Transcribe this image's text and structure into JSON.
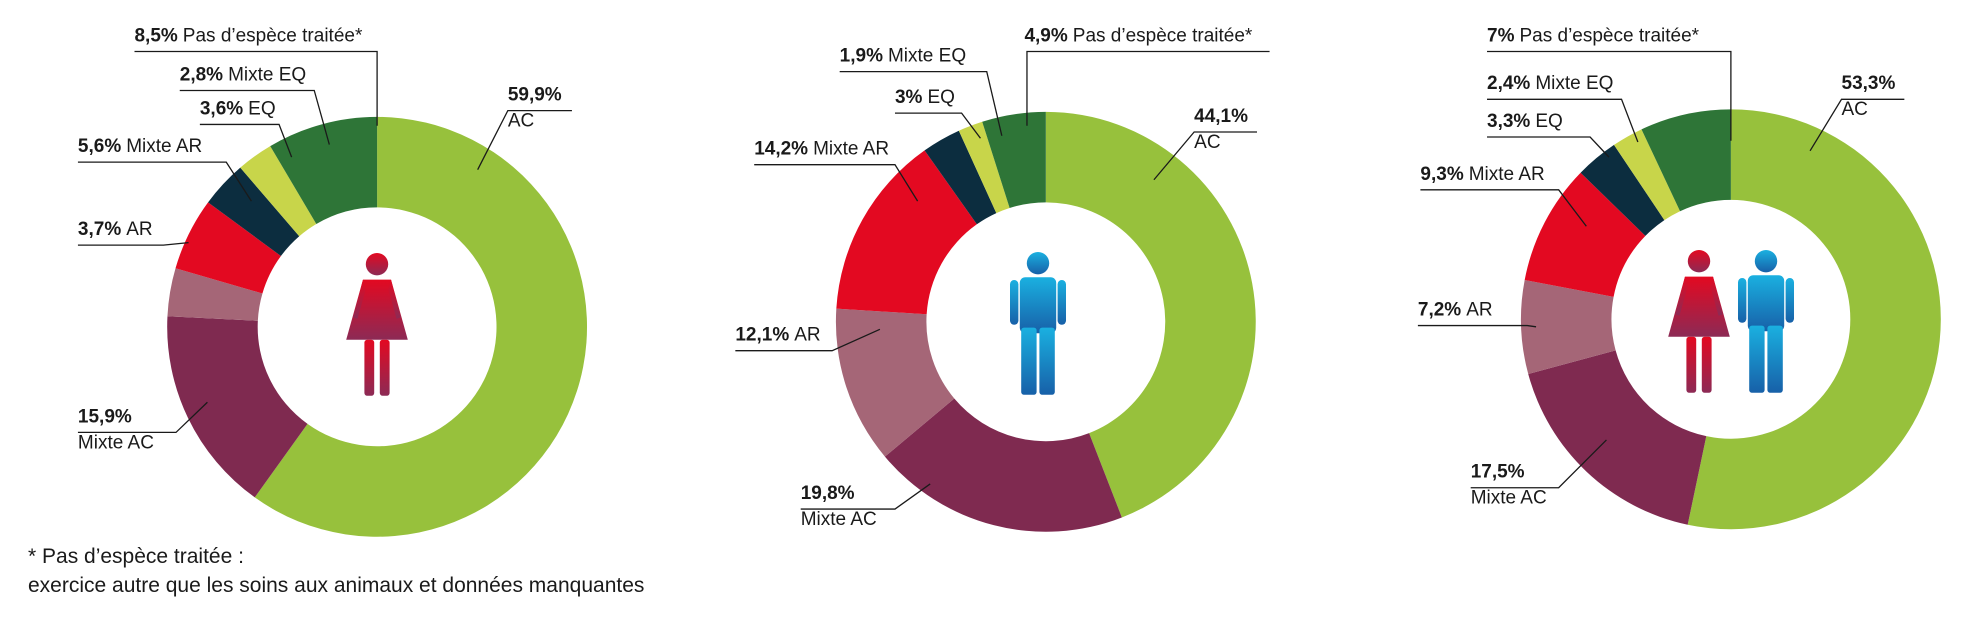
{
  "chart_data": [
    {
      "type": "pie",
      "donut": true,
      "categories": [
        "AC",
        "Mixte AC",
        "AR",
        "Mixte AR",
        "EQ",
        "Mixte EQ",
        "Pas d’espèce traitée*"
      ],
      "values": [
        59.9,
        15.9,
        3.7,
        5.6,
        3.6,
        2.8,
        8.5
      ],
      "value_labels": [
        "59,9%",
        "15,9%",
        "3,7%",
        "5,6%",
        "3,6%",
        "2,8%",
        "8,5%"
      ],
      "colors": [
        "#97c13c",
        "#7f2a50",
        "#a56677",
        "#e30921",
        "#0c2d3f",
        "#c8d54a",
        "#2e7537"
      ]
    },
    {
      "type": "pie",
      "donut": true,
      "categories": [
        "AC",
        "Mixte AC",
        "AR",
        "Mixte AR",
        "EQ",
        "Mixte EQ",
        "Pas d’espèce traitée*"
      ],
      "values": [
        44.1,
        19.8,
        12.1,
        14.2,
        3,
        1.9,
        4.9
      ],
      "value_labels": [
        "44,1%",
        "19,8%",
        "12,1%",
        "14,2%",
        "3%",
        "1,9%",
        "4,9%"
      ],
      "colors": [
        "#97c13c",
        "#7f2a50",
        "#a56677",
        "#e30921",
        "#0c2d3f",
        "#c8d54a",
        "#2e7537"
      ]
    },
    {
      "type": "pie",
      "donut": true,
      "categories": [
        "AC",
        "Mixte AC",
        "AR",
        "Mixte AR",
        "EQ",
        "Mixte EQ",
        "Pas d’espèce traitée*"
      ],
      "values": [
        53.3,
        17.5,
        7.2,
        9.3,
        3.3,
        2.4,
        7
      ],
      "value_labels": [
        "53,3%",
        "17,5%",
        "7,2%",
        "9,3%",
        "3,3%",
        "2,4%",
        "7%"
      ],
      "colors": [
        "#97c13c",
        "#7f2a50",
        "#a56677",
        "#e30921",
        "#0c2d3f",
        "#c8d54a",
        "#2e7537"
      ]
    }
  ],
  "footnote": [
    "* Pas d’espèce traitée :",
    "exercice autre que les soins aux animaux et données manquantes"
  ]
}
